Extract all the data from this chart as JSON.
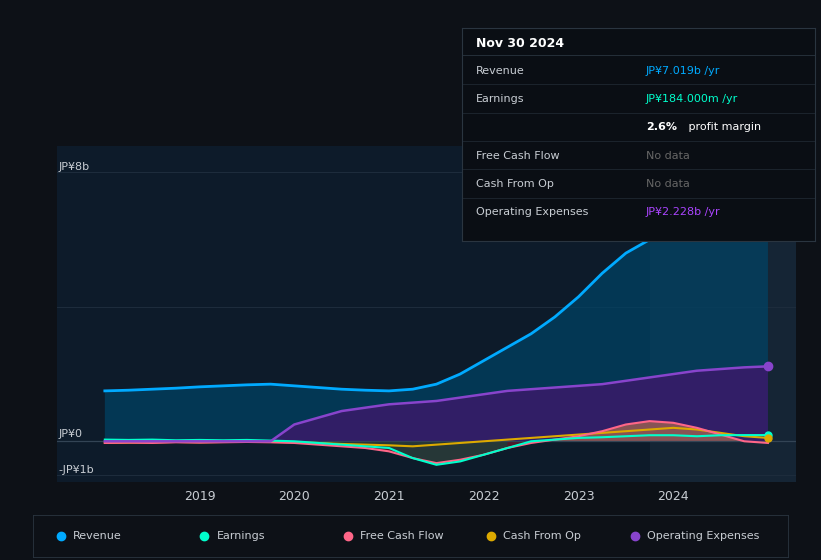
{
  "bg_color": "#0d1117",
  "plot_bg_color": "#0d1b2a",
  "grid_color": "#1e2d3d",
  "text_color": "#c8cdd3",
  "title_color": "#ffffff",
  "table_bg": "#0a0e14",
  "table_border": "#2a3540",
  "y_label_top": "JP¥8b",
  "y_label_mid": "JP¥0",
  "y_label_bot": "-JP¥1b",
  "ylim": [
    -1.2,
    8.8
  ],
  "xlim": [
    2017.5,
    2025.3
  ],
  "years": [
    2018.0,
    2018.25,
    2018.5,
    2018.75,
    2019.0,
    2019.25,
    2019.5,
    2019.75,
    2020.0,
    2020.25,
    2020.5,
    2020.75,
    2021.0,
    2021.25,
    2021.5,
    2021.75,
    2022.0,
    2022.25,
    2022.5,
    2022.75,
    2023.0,
    2023.25,
    2023.5,
    2023.75,
    2024.0,
    2024.25,
    2024.5,
    2024.75,
    2025.0
  ],
  "revenue": [
    1.5,
    1.52,
    1.55,
    1.58,
    1.62,
    1.65,
    1.68,
    1.7,
    1.65,
    1.6,
    1.55,
    1.52,
    1.5,
    1.55,
    1.7,
    2.0,
    2.4,
    2.8,
    3.2,
    3.7,
    4.3,
    5.0,
    5.6,
    6.0,
    6.4,
    6.7,
    6.9,
    7.1,
    7.2
  ],
  "op_expenses": [
    0.0,
    0.0,
    0.0,
    0.0,
    0.0,
    0.0,
    0.0,
    0.0,
    0.5,
    0.7,
    0.9,
    1.0,
    1.1,
    1.15,
    1.2,
    1.3,
    1.4,
    1.5,
    1.55,
    1.6,
    1.65,
    1.7,
    1.8,
    1.9,
    2.0,
    2.1,
    2.15,
    2.2,
    2.23
  ],
  "earnings": [
    0.05,
    0.04,
    0.05,
    0.03,
    0.04,
    0.03,
    0.04,
    0.02,
    0.0,
    -0.05,
    -0.1,
    -0.15,
    -0.2,
    -0.5,
    -0.7,
    -0.6,
    -0.4,
    -0.2,
    0.0,
    0.05,
    0.1,
    0.12,
    0.15,
    0.18,
    0.18,
    0.15,
    0.18,
    0.184,
    0.184
  ],
  "free_cash_flow": [
    -0.05,
    -0.04,
    -0.05,
    -0.03,
    -0.04,
    -0.03,
    -0.02,
    -0.03,
    -0.05,
    -0.1,
    -0.15,
    -0.2,
    -0.3,
    -0.5,
    -0.65,
    -0.55,
    -0.4,
    -0.2,
    -0.05,
    0.05,
    0.15,
    0.3,
    0.5,
    0.6,
    0.55,
    0.4,
    0.2,
    0.0,
    -0.05
  ],
  "cash_from_op": [
    -0.05,
    -0.04,
    -0.03,
    -0.02,
    -0.03,
    -0.02,
    -0.01,
    -0.02,
    -0.03,
    -0.05,
    -0.08,
    -0.1,
    -0.12,
    -0.15,
    -0.1,
    -0.05,
    0.0,
    0.05,
    0.1,
    0.15,
    0.2,
    0.25,
    0.3,
    0.35,
    0.4,
    0.35,
    0.25,
    0.15,
    0.1
  ],
  "revenue_color": "#00aaff",
  "op_expenses_color": "#8844cc",
  "earnings_color": "#00ffcc",
  "free_cash_flow_color": "#ff6688",
  "cash_from_op_color": "#ddaa00",
  "revenue_fill_color": "#004466",
  "op_fill_color": "#3a1a6a",
  "fcf_neg_fill": "#6a1a2a",
  "fcf_pos_fill": "#dd8844",
  "earnings_neg_fill": "#005544",
  "highlight_bg": "#152535",
  "highlight_start": 2023.75,
  "highlight_end": 2025.3,
  "table_title": "Nov 30 2024",
  "table_rows": [
    {
      "label": "Revenue",
      "value": "JP¥7.019b /yr",
      "value_color": "#00aaff"
    },
    {
      "label": "Earnings",
      "value": "JP¥184.000m /yr",
      "value_color": "#00ffcc"
    },
    {
      "label": "",
      "value": "2.6% profit margin",
      "value_color": "#ffffff"
    },
    {
      "label": "Free Cash Flow",
      "value": "No data",
      "value_color": "#666666"
    },
    {
      "label": "Cash From Op",
      "value": "No data",
      "value_color": "#666666"
    },
    {
      "label": "Operating Expenses",
      "value": "JP¥2.228b /yr",
      "value_color": "#aa44ff"
    }
  ],
  "legend_items": [
    {
      "label": "Revenue",
      "color": "#00aaff"
    },
    {
      "label": "Earnings",
      "color": "#00ffcc"
    },
    {
      "label": "Free Cash Flow",
      "color": "#ff6688"
    },
    {
      "label": "Cash From Op",
      "color": "#ddaa00"
    },
    {
      "label": "Operating Expenses",
      "color": "#8844cc"
    }
  ],
  "xtick_labels": [
    "2019",
    "2020",
    "2021",
    "2022",
    "2023",
    "2024"
  ],
  "xtick_positions": [
    2019,
    2020,
    2021,
    2022,
    2023,
    2024
  ]
}
